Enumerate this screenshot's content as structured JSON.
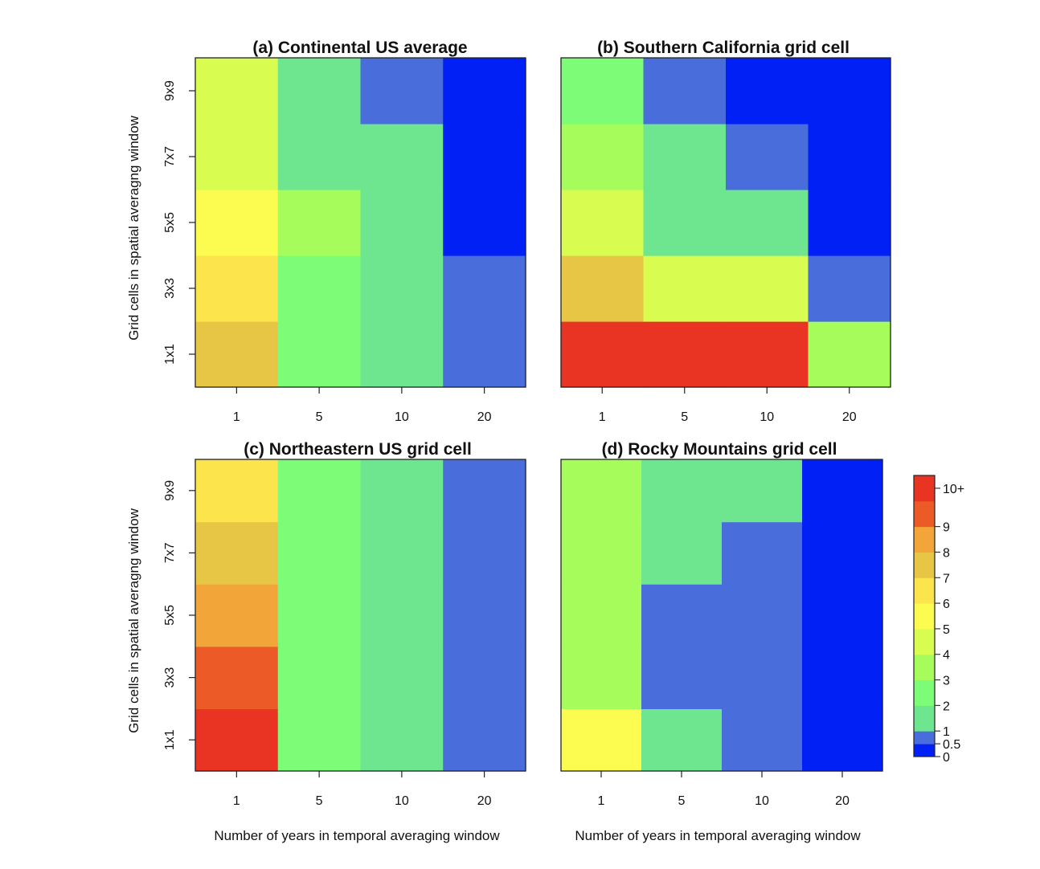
{
  "chart_data": {
    "type": "heatmap",
    "x_tick_labels": [
      "1",
      "5",
      "10",
      "20"
    ],
    "y_tick_labels": [
      "1x1",
      "3x3",
      "5x5",
      "7x7",
      "9x9"
    ],
    "xlabel": "Number of years in temporal averaging window",
    "ylabel": "Grid cells in spatial averagng window",
    "colorbar": {
      "breaks": [
        0,
        0.5,
        1,
        2,
        3,
        4,
        5,
        6,
        7,
        8,
        9,
        10,
        11
      ],
      "tick_values": [
        0,
        0.5,
        1,
        2,
        3,
        4,
        5,
        6,
        7,
        8,
        9,
        10.5
      ],
      "tick_labels": [
        "0",
        "0.5",
        "1",
        "2",
        "3",
        "4",
        "5",
        "6",
        "7",
        "8",
        "9",
        "10+"
      ],
      "colors": [
        "#0020f5",
        "#4a6ddc",
        "#6ee68f",
        "#7dfc78",
        "#a5fc5a",
        "#d8fc50",
        "#fcfc50",
        "#fce44c",
        "#e6c644",
        "#f2a63a",
        "#ec5a28",
        "#e93424"
      ]
    },
    "panels": [
      {
        "title": "(a) Continental US average",
        "values_note": "rows from 1x1 (bottom) to 9x9 (top), columns 1,5,10,20 years",
        "values": [
          [
            7.5,
            2.5,
            1.5,
            0.7
          ],
          [
            6.5,
            2.5,
            1.5,
            0.7
          ],
          [
            5.5,
            3.0,
            1.5,
            0.2
          ],
          [
            4.5,
            1.5,
            1.5,
            0.2
          ],
          [
            4.5,
            1.5,
            0.7,
            0.2
          ]
        ]
      },
      {
        "title": "(b) Southern California grid cell",
        "values": [
          [
            10.5,
            10.5,
            10.5,
            3.5
          ],
          [
            7.5,
            4.5,
            4.5,
            0.7
          ],
          [
            4.5,
            1.5,
            1.5,
            0.2
          ],
          [
            3.5,
            1.5,
            0.7,
            0.2
          ],
          [
            2.5,
            0.7,
            0.2,
            0.2
          ]
        ]
      },
      {
        "title": "(c) Northeastern US grid cell",
        "values": [
          [
            10.5,
            2.5,
            1.5,
            0.7
          ],
          [
            9.5,
            2.5,
            1.5,
            0.7
          ],
          [
            8.5,
            2.5,
            1.5,
            0.7
          ],
          [
            7.5,
            2.5,
            1.5,
            0.7
          ],
          [
            6.5,
            2.5,
            1.5,
            0.7
          ]
        ]
      },
      {
        "title": "(d) Rocky Mountains grid cell",
        "values": [
          [
            5.5,
            1.5,
            0.7,
            0.2
          ],
          [
            3.5,
            0.7,
            0.7,
            0.2
          ],
          [
            3.5,
            0.7,
            0.7,
            0.2
          ],
          [
            3.5,
            1.5,
            0.7,
            0.2
          ],
          [
            3.5,
            1.5,
            1.5,
            0.2
          ]
        ]
      }
    ]
  }
}
